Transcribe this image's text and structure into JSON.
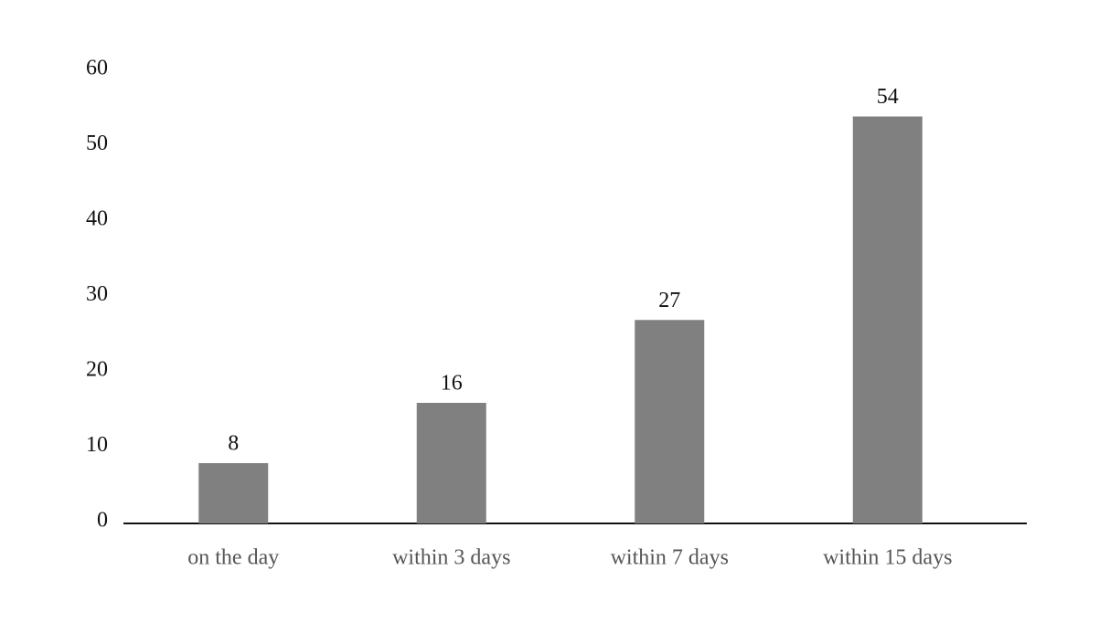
{
  "chart_data": {
    "type": "bar",
    "categories": [
      "on the day",
      "within 3 days",
      "within 7 days",
      "within 15 days"
    ],
    "values": [
      8,
      16,
      27,
      54
    ],
    "color": "#808080",
    "ylim": [
      0,
      60
    ],
    "yticks": [
      0,
      10,
      20,
      30,
      40,
      50,
      60
    ],
    "grid": false
  }
}
